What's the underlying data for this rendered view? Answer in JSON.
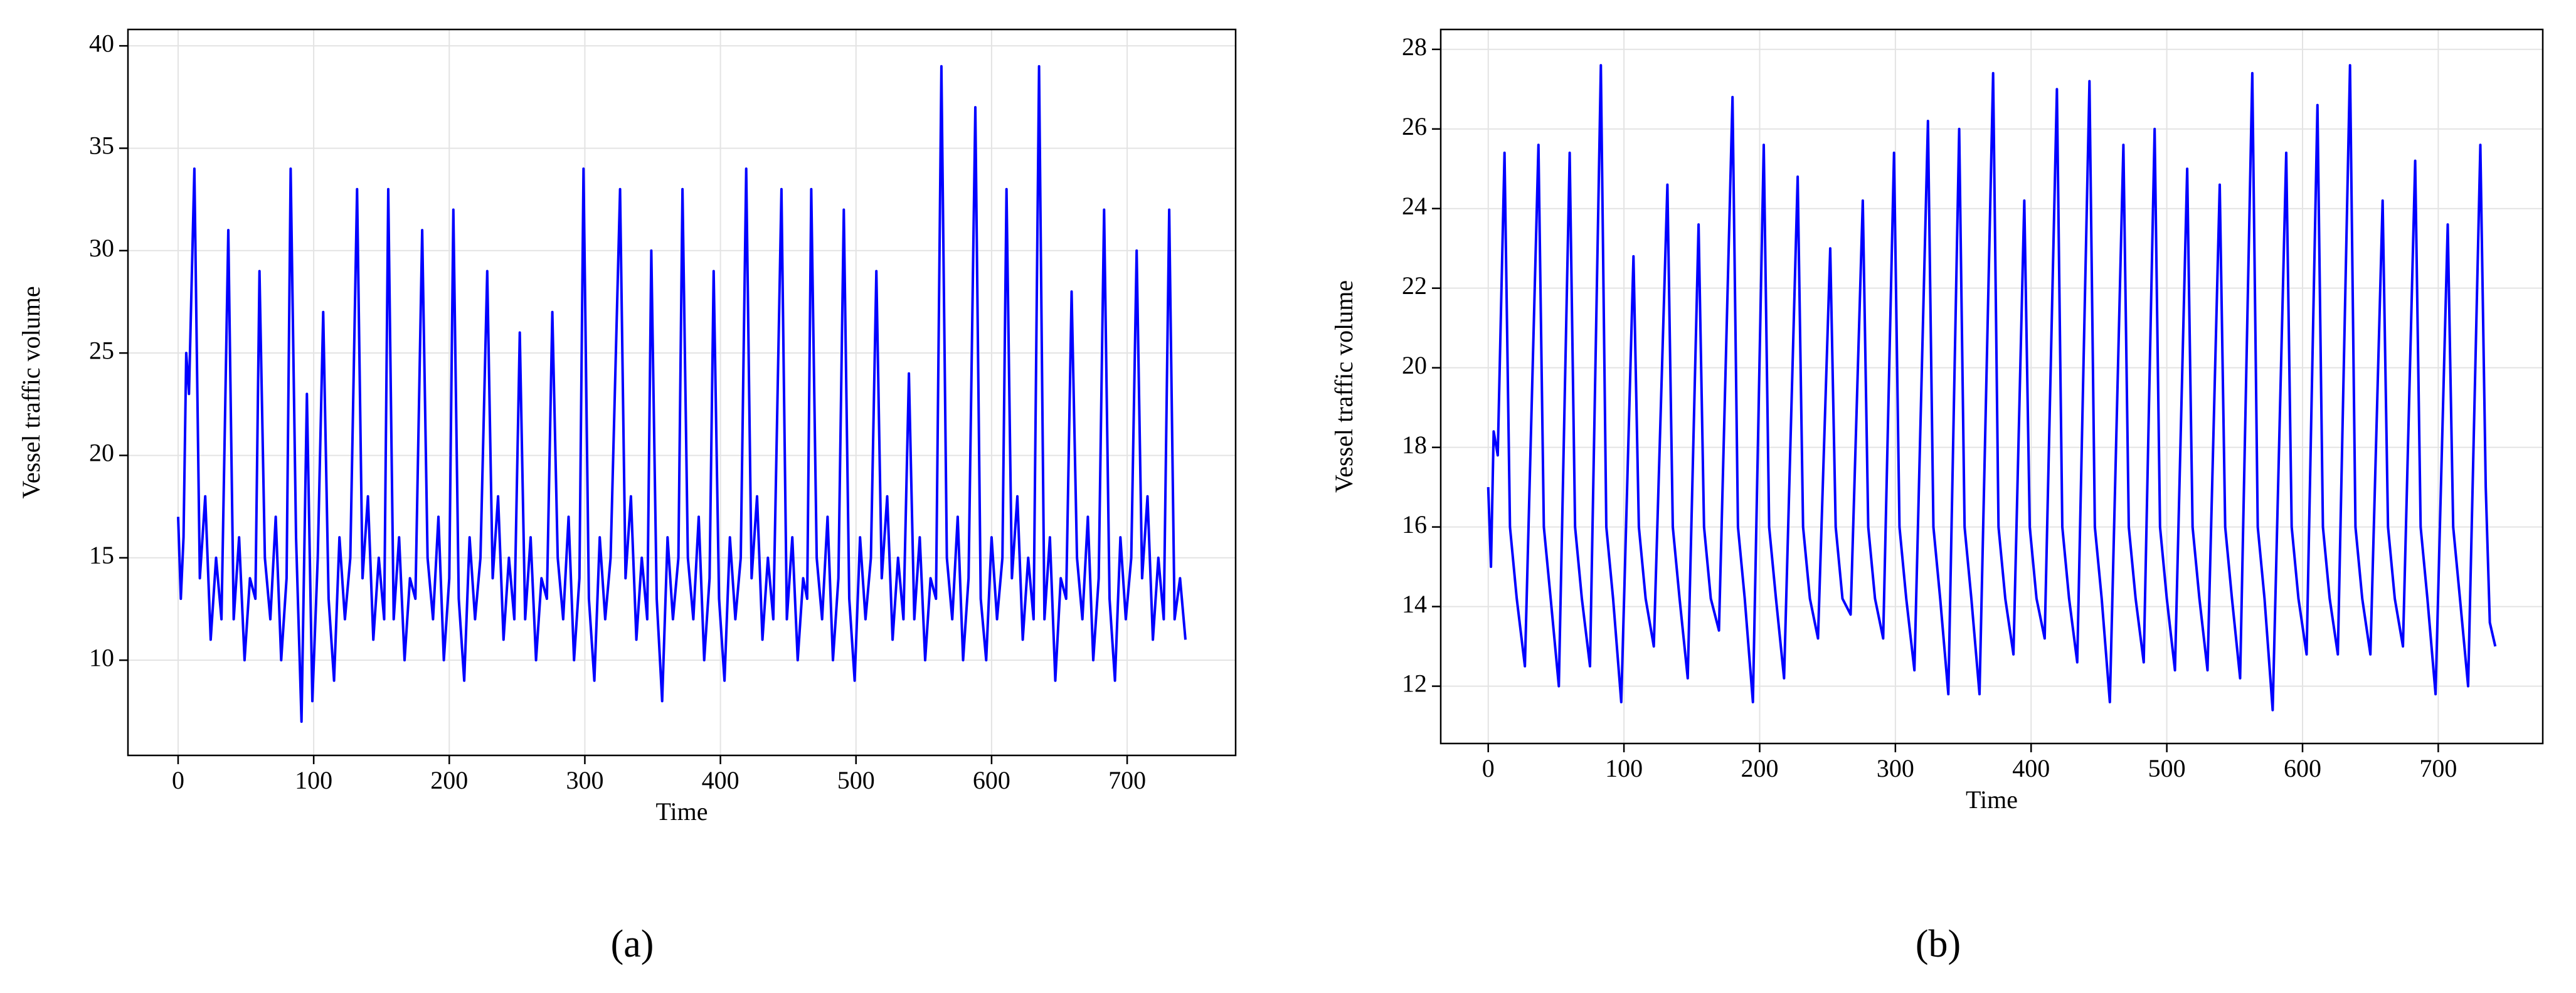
{
  "chart_data": [
    {
      "type": "line",
      "panel_label": "(a)",
      "x_label": "Time",
      "y_label": "Vessel traffic volume",
      "color": "#0000ff",
      "grid": true,
      "xlim": [
        -37,
        780
      ],
      "ylim": [
        5.35,
        40.8
      ],
      "xticks": [
        0,
        100,
        200,
        300,
        400,
        500,
        600,
        700
      ],
      "yticks": [
        10,
        15,
        20,
        25,
        30,
        35,
        40
      ],
      "x": [
        0,
        2,
        4,
        6,
        8,
        12,
        16,
        20,
        24,
        28,
        32,
        37,
        41,
        45,
        49,
        53,
        57,
        60,
        64,
        68,
        72,
        76,
        80,
        83,
        87,
        91,
        95,
        99,
        103,
        107,
        111,
        115,
        119,
        123,
        127,
        132,
        136,
        140,
        144,
        148,
        152,
        155,
        159,
        163,
        167,
        171,
        175,
        180,
        184,
        188,
        192,
        196,
        200,
        203,
        207,
        211,
        215,
        219,
        223,
        228,
        232,
        236,
        240,
        244,
        248,
        252,
        256,
        260,
        264,
        268,
        272,
        276,
        280,
        284,
        288,
        292,
        296,
        299,
        303,
        307,
        311,
        315,
        319,
        326,
        330,
        334,
        338,
        342,
        346,
        349,
        353,
        357,
        361,
        365,
        369,
        372,
        376,
        380,
        384,
        388,
        392,
        395,
        399,
        403,
        407,
        411,
        415,
        419,
        423,
        427,
        431,
        435,
        439,
        445,
        449,
        453,
        457,
        461,
        464,
        467,
        471,
        475,
        479,
        483,
        487,
        491,
        495,
        499,
        503,
        507,
        511,
        515,
        519,
        523,
        527,
        531,
        535,
        539,
        543,
        547,
        551,
        555,
        559,
        563,
        567,
        571,
        575,
        579,
        583,
        588,
        592,
        596,
        600,
        604,
        608,
        611,
        615,
        619,
        623,
        627,
        631,
        635,
        639,
        643,
        647,
        651,
        655,
        659,
        663,
        667,
        671,
        675,
        679,
        683,
        687,
        691,
        695,
        699,
        703,
        707,
        711,
        715,
        719,
        723,
        727,
        731,
        735,
        739,
        743
      ],
      "values": [
        17,
        13,
        16,
        25,
        23,
        34,
        14,
        18,
        11,
        15,
        12,
        31,
        12,
        16,
        10,
        14,
        13,
        29,
        15,
        12,
        17,
        10,
        14,
        34,
        16,
        7,
        23,
        8,
        15,
        27,
        13,
        9,
        16,
        12,
        15,
        33,
        14,
        18,
        11,
        15,
        12,
        33,
        12,
        16,
        10,
        14,
        13,
        31,
        15,
        12,
        17,
        10,
        14,
        32,
        13,
        9,
        16,
        12,
        15,
        29,
        14,
        18,
        11,
        15,
        12,
        26,
        12,
        16,
        10,
        14,
        13,
        27,
        15,
        12,
        17,
        10,
        14,
        34,
        13,
        9,
        16,
        12,
        15,
        33,
        14,
        18,
        11,
        15,
        12,
        30,
        13,
        8,
        16,
        12,
        15,
        33,
        15,
        12,
        17,
        10,
        14,
        29,
        13,
        9,
        16,
        12,
        15,
        34,
        14,
        18,
        11,
        15,
        12,
        33,
        12,
        16,
        10,
        14,
        13,
        33,
        15,
        12,
        17,
        10,
        14,
        32,
        13,
        9,
        16,
        12,
        15,
        29,
        14,
        18,
        11,
        15,
        12,
        24,
        12,
        16,
        10,
        14,
        13,
        39,
        15,
        12,
        17,
        10,
        14,
        37,
        13,
        10,
        16,
        12,
        15,
        33,
        14,
        18,
        11,
        15,
        12,
        39,
        12,
        16,
        9,
        14,
        13,
        28,
        15,
        12,
        17,
        10,
        14,
        32,
        13,
        9,
        16,
        12,
        15,
        30,
        14,
        18,
        11,
        15,
        12,
        32,
        12,
        14,
        11
      ]
    },
    {
      "type": "line",
      "panel_label": "(b)",
      "x_label": "Time",
      "y_label": "Vessel traffic volume",
      "color": "#0000ff",
      "grid": true,
      "xlim": [
        -35,
        777
      ],
      "ylim": [
        10.56,
        28.5
      ],
      "xticks": [
        0,
        100,
        200,
        300,
        400,
        500,
        600,
        700
      ],
      "yticks": [
        12,
        14,
        16,
        18,
        20,
        22,
        24,
        26,
        28
      ],
      "x": [
        0,
        2,
        4,
        7,
        12,
        16,
        21,
        27,
        37,
        41,
        46,
        52,
        60,
        64,
        69,
        75,
        83,
        87,
        92,
        98,
        107,
        111,
        116,
        122,
        132,
        136,
        141,
        147,
        155,
        159,
        164,
        170,
        180,
        184,
        189,
        195,
        203,
        207,
        212,
        218,
        228,
        232,
        237,
        243,
        252,
        256,
        261,
        267,
        276,
        280,
        285,
        291,
        299,
        303,
        308,
        314,
        324,
        328,
        333,
        339,
        347,
        351,
        356,
        362,
        372,
        376,
        381,
        387,
        395,
        399,
        404,
        410,
        419,
        423,
        428,
        434,
        443,
        447,
        452,
        458,
        468,
        472,
        477,
        483,
        491,
        495,
        500,
        506,
        515,
        519,
        524,
        530,
        539,
        543,
        548,
        554,
        563,
        567,
        572,
        578,
        588,
        592,
        597,
        603,
        611,
        615,
        620,
        626,
        635,
        639,
        644,
        650,
        659,
        663,
        668,
        674,
        683,
        687,
        692,
        698,
        707,
        711,
        716,
        722,
        731,
        735,
        738,
        742
      ],
      "values": [
        17,
        15,
        18.4,
        17.8,
        25.4,
        16,
        14.2,
        12.5,
        25.6,
        16,
        14.2,
        12.0,
        25.4,
        16,
        14.2,
        12.5,
        27.6,
        16,
        14.2,
        11.6,
        22.8,
        16,
        14.2,
        13.0,
        24.6,
        16,
        14.2,
        12.2,
        23.6,
        16,
        14.2,
        13.4,
        26.8,
        16,
        14.2,
        11.6,
        25.6,
        16,
        14.2,
        12.2,
        24.8,
        16,
        14.2,
        13.2,
        23.0,
        16,
        14.2,
        13.8,
        24.2,
        16,
        14.2,
        13.2,
        25.4,
        16,
        14.2,
        12.4,
        26.2,
        16,
        14.2,
        11.8,
        26.0,
        16,
        14.2,
        11.8,
        27.4,
        16,
        14.2,
        12.8,
        24.2,
        16,
        14.2,
        13.2,
        27.0,
        16,
        14.2,
        12.6,
        27.2,
        16,
        14.2,
        11.6,
        25.6,
        16,
        14.2,
        12.6,
        26.0,
        16,
        14.2,
        12.4,
        25.0,
        16,
        14.2,
        12.4,
        24.6,
        16,
        14.2,
        12.2,
        27.4,
        16,
        14.2,
        11.4,
        25.4,
        16,
        14.2,
        12.8,
        26.6,
        16,
        14.2,
        12.8,
        27.6,
        16,
        14.2,
        12.8,
        24.2,
        16,
        14.2,
        13.0,
        25.2,
        16,
        14.2,
        11.8,
        23.6,
        16,
        14.2,
        12.0,
        25.6,
        17,
        13.6,
        13
      ]
    }
  ]
}
